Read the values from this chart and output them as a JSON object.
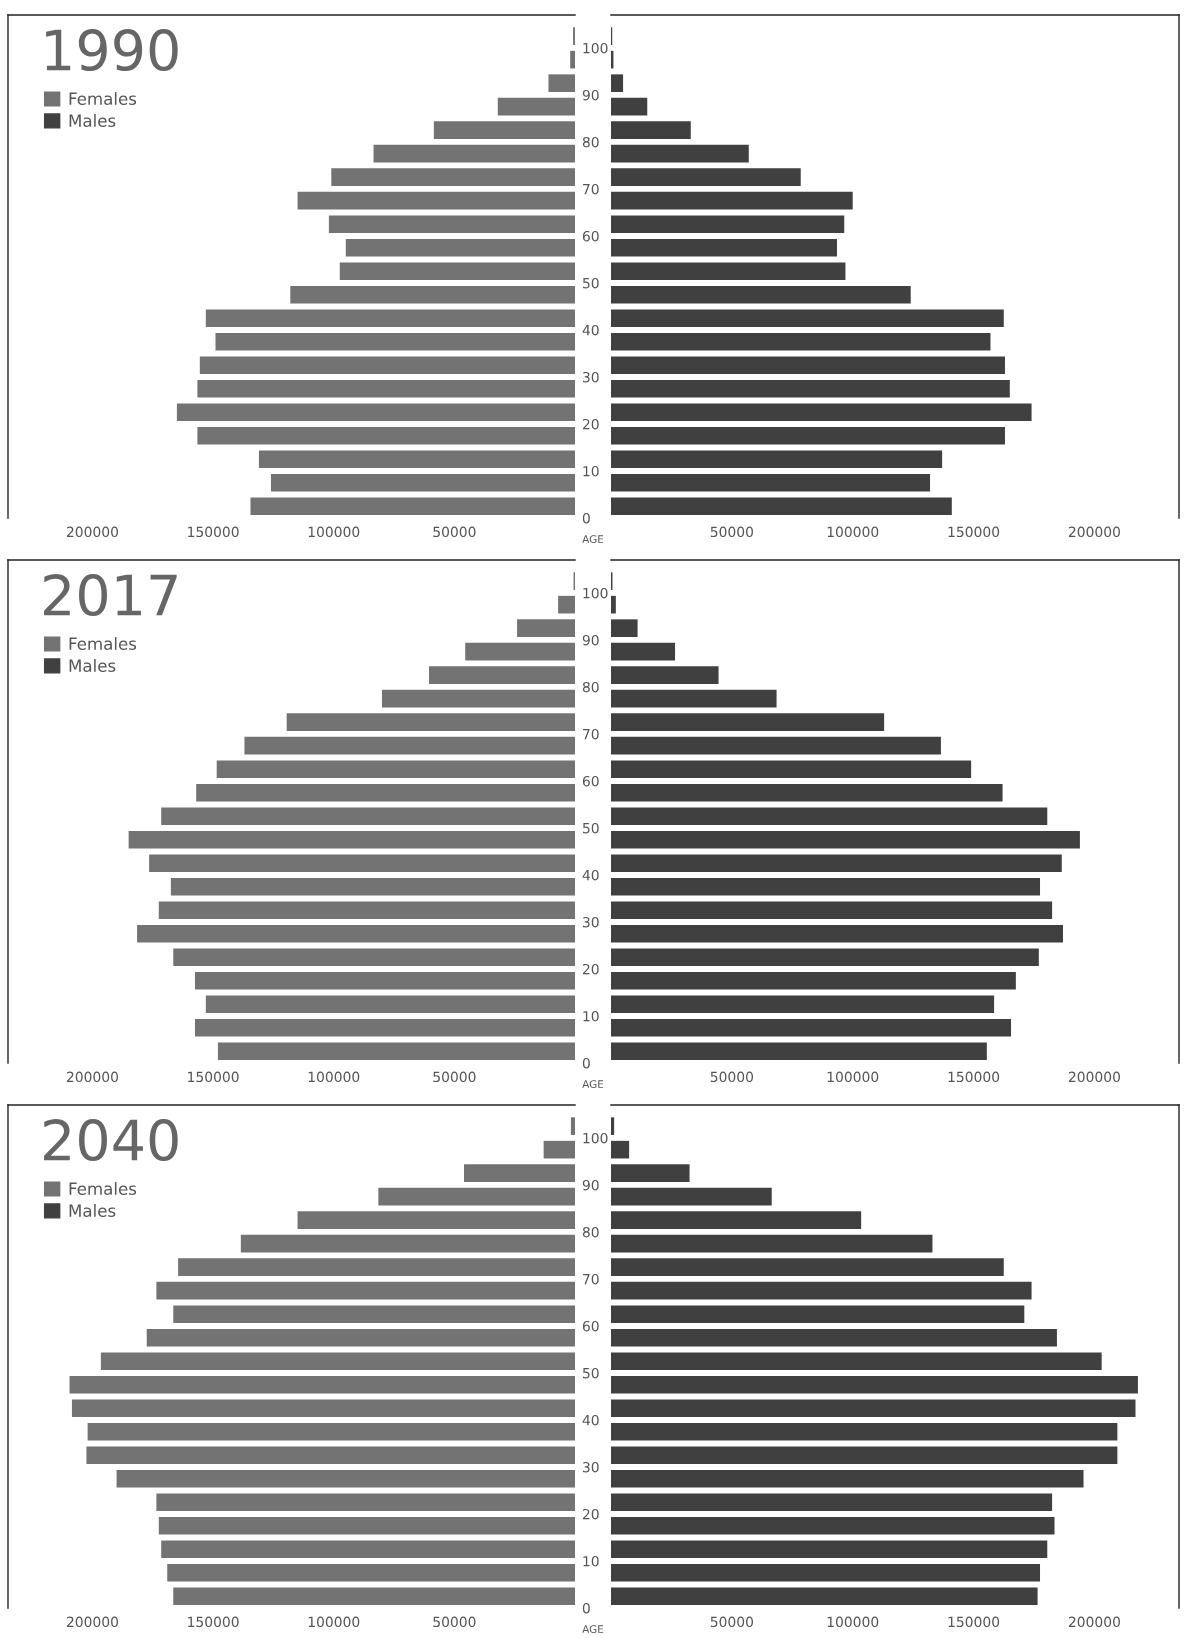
{
  "chart_data": [
    {
      "type": "bar",
      "orientation": "horizontal",
      "title": "1990",
      "ylabel": "AGE",
      "legend": "top left",
      "x": [
        2.5,
        7.5,
        12.5,
        17.5,
        22.5,
        27.5,
        32.5,
        37.5,
        42.5,
        47.5,
        52.5,
        57.5,
        62.5,
        67.5,
        72.5,
        77.5,
        82.5,
        87.5,
        92.5,
        97.5,
        102.5
      ],
      "ylim": [
        0,
        107
      ],
      "yticks": [
        0,
        10,
        20,
        30,
        40,
        50,
        60,
        70,
        80,
        90,
        100
      ],
      "xlim": [
        235000,
        0
      ],
      "xticks": [
        200000,
        150000,
        100000,
        50000
      ],
      "series": [
        {
          "name": "Females",
          "color": "#737373",
          "values": [
            134500,
            126000,
            131000,
            156500,
            165000,
            156500,
            155500,
            149000,
            153000,
            118000,
            97500,
            95000,
            102000,
            115000,
            101000,
            83500,
            58500,
            32000,
            11000,
            2000,
            800
          ]
        }
      ]
    },
    {
      "type": "bar",
      "orientation": "horizontal",
      "legend": "top left",
      "tick_labels": "x",
      "x": [
        2.5,
        7.5,
        12.5,
        17.5,
        22.5,
        27.5,
        32.5,
        37.5,
        42.5,
        47.5,
        52.5,
        57.5,
        62.5,
        67.5,
        72.5,
        77.5,
        82.5,
        87.5,
        92.5,
        97.5,
        102.5
      ],
      "ylim": [
        0,
        107
      ],
      "xlim": [
        0,
        235000
      ],
      "xticks": [
        50000,
        100000,
        150000,
        200000
      ],
      "series": [
        {
          "name": "Males",
          "color": "#404040",
          "values": [
            141000,
            132000,
            137000,
            163000,
            174000,
            165000,
            163000,
            157000,
            162500,
            124000,
            97000,
            93500,
            96500,
            100000,
            78500,
            57000,
            33000,
            15000,
            5000,
            1000,
            500
          ]
        }
      ]
    },
    {
      "type": "bar",
      "orientation": "horizontal",
      "title": "2017",
      "ylabel": "AGE",
      "legend": "top left",
      "x": [
        2.5,
        7.5,
        12.5,
        17.5,
        22.5,
        27.5,
        32.5,
        37.5,
        42.5,
        47.5,
        52.5,
        57.5,
        62.5,
        67.5,
        72.5,
        77.5,
        82.5,
        87.5,
        92.5,
        97.5,
        102.5
      ],
      "ylim": [
        0,
        107
      ],
      "yticks": [
        0,
        10,
        20,
        30,
        40,
        50,
        60,
        70,
        80,
        90,
        100
      ],
      "xlim": [
        235000,
        0
      ],
      "xticks": [
        200000,
        150000,
        100000,
        50000
      ],
      "series": [
        {
          "name": "Females",
          "color": "#737373",
          "values": [
            148000,
            157500,
            153000,
            157500,
            166500,
            181500,
            172500,
            167500,
            176500,
            185000,
            171500,
            157000,
            148500,
            137000,
            119500,
            80000,
            60500,
            45500,
            24000,
            7000,
            600
          ]
        }
      ]
    },
    {
      "type": "bar",
      "orientation": "horizontal",
      "legend": "top left",
      "tick_labels": "x",
      "x": [
        2.5,
        7.5,
        12.5,
        17.5,
        22.5,
        27.5,
        32.5,
        37.5,
        42.5,
        47.5,
        52.5,
        57.5,
        62.5,
        67.5,
        72.5,
        77.5,
        82.5,
        87.5,
        92.5,
        97.5,
        102.5
      ],
      "ylim": [
        0,
        107
      ],
      "xlim": [
        0,
        235000
      ],
      "xticks": [
        50000,
        100000,
        150000,
        200000
      ],
      "series": [
        {
          "name": "Males",
          "color": "#404040",
          "values": [
            155500,
            165500,
            158500,
            167500,
            177000,
            187000,
            182500,
            177500,
            186500,
            194000,
            180500,
            162000,
            149000,
            136500,
            113000,
            68500,
            44500,
            26500,
            11000,
            2000,
            600
          ]
        }
      ]
    },
    {
      "type": "bar",
      "orientation": "horizontal",
      "title": "2040",
      "ylabel": "AGE",
      "legend": "top left",
      "x": [
        2.5,
        7.5,
        12.5,
        17.5,
        22.5,
        27.5,
        32.5,
        37.5,
        42.5,
        47.5,
        52.5,
        57.5,
        62.5,
        67.5,
        72.5,
        77.5,
        82.5,
        87.5,
        92.5,
        97.5,
        102.5
      ],
      "ylim": [
        0,
        107
      ],
      "yticks": [
        0,
        10,
        20,
        30,
        40,
        50,
        60,
        70,
        80,
        90,
        100
      ],
      "xlim": [
        235000,
        0
      ],
      "xticks": [
        200000,
        150000,
        100000,
        50000
      ],
      "series": [
        {
          "name": "Females",
          "color": "#737373",
          "values": [
            166500,
            169000,
            171500,
            172500,
            173500,
            190000,
            202500,
            202000,
            208500,
            209500,
            196500,
            177500,
            166500,
            173500,
            164500,
            138500,
            115000,
            81500,
            46000,
            13000,
            1700
          ]
        }
      ]
    },
    {
      "type": "bar",
      "orientation": "horizontal",
      "legend": "top left",
      "tick_labels": "x",
      "x": [
        2.5,
        7.5,
        12.5,
        17.5,
        22.5,
        27.5,
        32.5,
        37.5,
        42.5,
        47.5,
        52.5,
        57.5,
        62.5,
        67.5,
        72.5,
        77.5,
        82.5,
        87.5,
        92.5,
        97.5,
        102.5
      ],
      "ylim": [
        0,
        107
      ],
      "xlim": [
        0,
        235000
      ],
      "xticks": [
        50000,
        100000,
        150000,
        200000
      ],
      "series": [
        {
          "name": "Males",
          "color": "#404040",
          "values": [
            176500,
            177500,
            180500,
            183500,
            182500,
            195500,
            209500,
            209500,
            217000,
            218000,
            203000,
            184500,
            171000,
            174000,
            162500,
            133000,
            103500,
            66500,
            32500,
            7500,
            1300
          ]
        }
      ]
    }
  ]
}
